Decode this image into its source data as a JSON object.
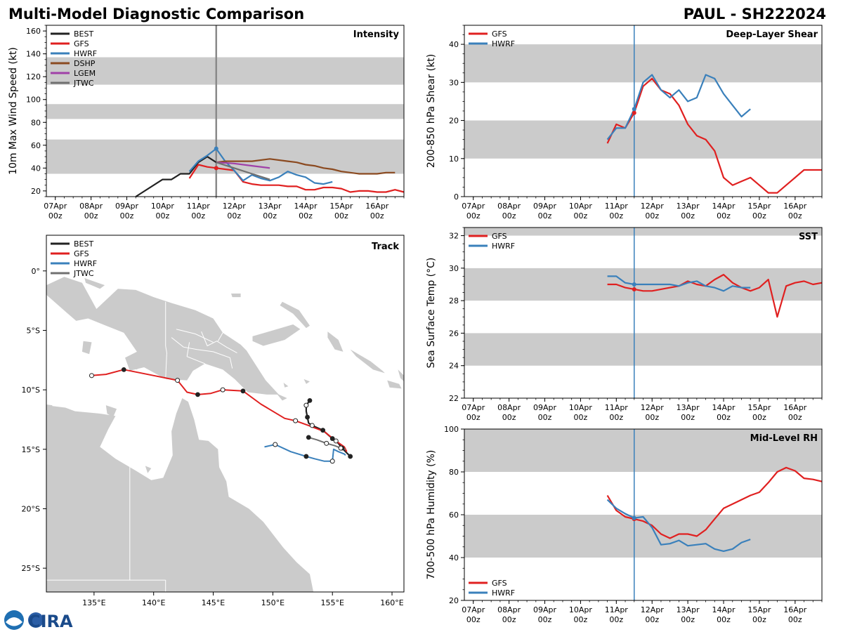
{
  "header": {
    "left_title": "Multi-Model Diagnostic Comparison",
    "right_title": "PAUL - SH222024"
  },
  "colors": {
    "BEST": "#222222",
    "GFS": "#e02020",
    "HWRF": "#3a80bb",
    "DSHP": "#8b4a20",
    "LGEM": "#a040a8",
    "JTWC": "#707070",
    "band": "#cbcbcb",
    "land": "#cbcbcb"
  },
  "time_ticks": [
    "07Apr",
    "08Apr",
    "09Apr",
    "10Apr",
    "11Apr",
    "12Apr",
    "13Apr",
    "14Apr",
    "15Apr",
    "16Apr"
  ],
  "time_sub": "00z",
  "logo_text": "CIRA",
  "chart_data": [
    {
      "id": "intensity",
      "type": "line",
      "title": "Intensity",
      "ylabel": "10m Max Wind Speed (kt)",
      "xlim": [
        6.75,
        16.75
      ],
      "ylim": [
        15,
        165
      ],
      "yticks": [
        20,
        40,
        60,
        80,
        100,
        120,
        140,
        160
      ],
      "bands": [
        [
          35,
          65
        ],
        [
          83,
          96
        ],
        [
          113,
          137
        ]
      ],
      "vline": 11.5,
      "series": [
        {
          "name": "BEST",
          "x": [
            9.25,
            10,
            10.25,
            10.5,
            10.75,
            11,
            11.25,
            11.5
          ],
          "y": [
            15,
            30,
            30,
            35,
            35,
            45,
            50,
            45
          ]
        },
        {
          "name": "GFS",
          "x": [
            10.75,
            11,
            11.25,
            11.5,
            11.75,
            12,
            12.25,
            12.5,
            12.75,
            13,
            13.25,
            13.5,
            13.75,
            14,
            14.25,
            14.5,
            14.75,
            15,
            15.25,
            15.5,
            15.75,
            16,
            16.25,
            16.5,
            16.75
          ],
          "y": [
            31,
            43,
            41,
            40,
            39,
            38,
            28,
            26,
            25,
            25,
            25,
            24,
            24,
            21,
            21,
            23,
            23,
            22,
            19,
            20,
            20,
            19,
            19,
            21,
            19
          ]
        },
        {
          "name": "HWRF",
          "x": [
            10.75,
            11,
            11.25,
            11.5,
            11.75,
            12,
            12.25,
            12.5,
            12.75,
            13,
            13.25,
            13.5,
            13.75,
            14,
            14.25,
            14.5,
            14.75
          ],
          "y": [
            37,
            46,
            51,
            57,
            46,
            38,
            29,
            34,
            31,
            29,
            32,
            37,
            34,
            32,
            27,
            26,
            28
          ]
        },
        {
          "name": "DSHP",
          "x": [
            11.5,
            11.75,
            12,
            12.5,
            13,
            13.5,
            13.75,
            14,
            14.25,
            14.5,
            14.75,
            15,
            15.25,
            15.5,
            15.75,
            16,
            16.25,
            16.5
          ],
          "y": [
            45,
            46,
            46,
            46,
            48,
            46,
            45,
            43,
            42,
            40,
            39,
            37,
            36,
            35,
            35,
            35,
            36,
            36
          ]
        },
        {
          "name": "LGEM",
          "x": [
            11.5,
            12,
            12.5,
            13
          ],
          "y": [
            45,
            44,
            42,
            40
          ]
        },
        {
          "name": "JTWC",
          "x": [
            11.5,
            12,
            12.5,
            13
          ],
          "y": [
            45,
            40,
            35,
            30
          ]
        }
      ]
    },
    {
      "id": "shear",
      "type": "line",
      "title": "Deep-Layer Shear",
      "ylabel": "200-850 hPa Shear (kt)",
      "xlim": [
        6.75,
        16.75
      ],
      "ylim": [
        0,
        45
      ],
      "yticks": [
        0,
        10,
        20,
        30,
        40
      ],
      "bands": [
        [
          10,
          20
        ],
        [
          30,
          40
        ]
      ],
      "vline": 11.5,
      "series": [
        {
          "name": "GFS",
          "x": [
            10.75,
            11,
            11.25,
            11.5,
            11.75,
            12,
            12.25,
            12.5,
            12.75,
            13,
            13.25,
            13.5,
            13.75,
            14,
            14.25,
            14.5,
            14.75,
            15,
            15.25,
            15.5,
            15.75,
            16,
            16.25,
            16.5,
            16.75
          ],
          "y": [
            14,
            19,
            18,
            22,
            29,
            31,
            28,
            27,
            24,
            19,
            16,
            15,
            12,
            5,
            3,
            4,
            5,
            3,
            1,
            1,
            3,
            5,
            7,
            7,
            7
          ]
        },
        {
          "name": "HWRF",
          "x": [
            10.75,
            11,
            11.25,
            11.5,
            11.75,
            12,
            12.25,
            12.5,
            12.75,
            13,
            13.25,
            13.5,
            13.75,
            14,
            14.25,
            14.5,
            14.75
          ],
          "y": [
            15,
            18,
            18,
            23,
            30,
            32,
            28,
            26,
            28,
            25,
            26,
            32,
            31,
            27,
            24,
            21,
            23
          ]
        }
      ]
    },
    {
      "id": "sst",
      "type": "line",
      "title": "SST",
      "ylabel": "Sea Surface Temp (°C)",
      "xlim": [
        6.75,
        16.75
      ],
      "ylim": [
        22,
        32.5
      ],
      "yticks": [
        22,
        24,
        26,
        28,
        30,
        32
      ],
      "bands": [
        [
          24,
          26
        ],
        [
          28,
          30
        ],
        [
          32,
          32.5
        ]
      ],
      "vline": 11.5,
      "series": [
        {
          "name": "GFS",
          "x": [
            10.75,
            11,
            11.25,
            11.5,
            11.75,
            12,
            12.25,
            12.5,
            12.75,
            13,
            13.25,
            13.5,
            13.75,
            14,
            14.25,
            14.5,
            14.75,
            15,
            15.25,
            15.5,
            15.75,
            16,
            16.25,
            16.5,
            16.75
          ],
          "y": [
            29,
            29,
            28.8,
            28.7,
            28.6,
            28.6,
            28.7,
            28.8,
            28.9,
            29.2,
            29,
            28.9,
            29.3,
            29.6,
            29.1,
            28.8,
            28.6,
            28.8,
            29.3,
            27,
            28.9,
            29.1,
            29.2,
            29,
            29.1
          ]
        },
        {
          "name": "HWRF",
          "x": [
            10.75,
            11,
            11.25,
            11.5,
            11.75,
            12,
            12.25,
            12.5,
            12.75,
            13,
            13.25,
            13.5,
            13.75,
            14,
            14.25,
            14.5,
            14.75
          ],
          "y": [
            29.5,
            29.5,
            29.1,
            29,
            29,
            29,
            29,
            29,
            28.9,
            29.1,
            29.2,
            28.9,
            28.8,
            28.6,
            28.9,
            28.8,
            28.8
          ]
        }
      ]
    },
    {
      "id": "rh",
      "type": "line",
      "title": "Mid-Level RH",
      "ylabel": "700-500 hPa Humidity (%)",
      "xlim": [
        6.75,
        16.75
      ],
      "ylim": [
        20,
        100
      ],
      "yticks": [
        20,
        40,
        60,
        80,
        100
      ],
      "bands": [
        [
          40,
          60
        ],
        [
          80,
          100
        ]
      ],
      "vline": 11.5,
      "series": [
        {
          "name": "GFS",
          "x": [
            10.75,
            11,
            11.25,
            11.5,
            11.75,
            12,
            12.25,
            12.5,
            12.75,
            13,
            13.25,
            13.5,
            13.75,
            14,
            14.25,
            14.5,
            14.75,
            15,
            15.25,
            15.5,
            15.75,
            16,
            16.25,
            16.5,
            16.75
          ],
          "y": [
            69,
            62,
            59,
            58,
            57,
            55,
            51,
            49,
            51,
            51,
            50,
            53,
            58,
            63,
            65,
            67,
            69,
            70.5,
            75,
            80,
            82,
            80.5,
            77,
            76.5,
            75.5
          ]
        },
        {
          "name": "HWRF",
          "x": [
            10.75,
            11,
            11.25,
            11.5,
            11.75,
            12,
            12.25,
            12.5,
            12.75,
            13,
            13.25,
            13.5,
            13.75,
            14,
            14.25,
            14.5,
            14.75
          ],
          "y": [
            67,
            63,
            60.5,
            58.5,
            59,
            54,
            46,
            46.5,
            48,
            45.5,
            46,
            46.5,
            44,
            43,
            44,
            47,
            48.5
          ]
        }
      ]
    },
    {
      "id": "track",
      "type": "scatter",
      "title": "Track",
      "xlim": [
        131,
        161
      ],
      "ylim": [
        -27,
        3
      ],
      "xticks": [
        135,
        140,
        145,
        150,
        155,
        160
      ],
      "xticklabels": [
        "135°E",
        "140°E",
        "145°E",
        "150°E",
        "155°E",
        "160°E"
      ],
      "yticks": [
        0,
        -5,
        -10,
        -15,
        -20,
        -25
      ],
      "yticklabels": [
        "0°",
        "5°S",
        "10°S",
        "15°S",
        "20°S",
        "25°S"
      ],
      "series": [
        {
          "name": "BEST",
          "lon": [
            153.1,
            152.8,
            152.8,
            152.9,
            153.0,
            153.3,
            154.2,
            155.0,
            155.5,
            155.8,
            156.1,
            156.5
          ],
          "lat": [
            -10.9,
            -11.3,
            -11.8,
            -12.3,
            -12.8,
            -13.0,
            -13.4,
            -14.1,
            -14.5,
            -14.9,
            -15.2,
            -15.6
          ]
        },
        {
          "name": "GFS",
          "lon": [
            134.8,
            136.0,
            137.5,
            140.0,
            142.0,
            142.8,
            143.7,
            144.8,
            145.8,
            147.5,
            149.0,
            151.0,
            151.9,
            153.0,
            154.3,
            155.3,
            156.0,
            156.2
          ],
          "lat": [
            -8.8,
            -8.7,
            -8.3,
            -8.8,
            -9.2,
            -10.2,
            -10.4,
            -10.3,
            -10.0,
            -10.1,
            -11.2,
            -12.4,
            -12.6,
            -13.0,
            -13.5,
            -14.3,
            -14.8,
            -15.2
          ]
        },
        {
          "name": "HWRF",
          "lon": [
            149.3,
            150.2,
            151.5,
            152.8,
            153.5,
            154.3,
            155.0,
            155.1,
            155.5,
            156.0,
            156.1
          ],
          "lat": [
            -14.8,
            -14.6,
            -15.2,
            -15.6,
            -15.8,
            -16.0,
            -16.0,
            -15.0,
            -15.2,
            -15.4,
            -15.5
          ]
        },
        {
          "name": "JTWC",
          "lon": [
            153.0,
            153.7,
            154.5,
            155.2,
            155.7,
            156.1
          ],
          "lat": [
            -14.0,
            -14.2,
            -14.5,
            -14.7,
            -14.9,
            -15.0
          ]
        }
      ],
      "markers": [
        {
          "name": "BEST",
          "filled": [
            [
              153.1,
              -10.9
            ],
            [
              152.9,
              -12.3
            ],
            [
              154.2,
              -13.4
            ],
            [
              155.0,
              -14.1
            ],
            [
              155.8,
              -14.9
            ],
            [
              156.5,
              -15.6
            ]
          ],
          "open": [
            [
              152.8,
              -11.3
            ],
            [
              153.3,
              -13.0
            ]
          ]
        },
        {
          "name": "GFS",
          "filled": [
            [
              137.5,
              -8.3
            ],
            [
              143.7,
              -10.4
            ],
            [
              147.5,
              -10.1
            ]
          ],
          "open": [
            [
              134.8,
              -8.8
            ],
            [
              142.0,
              -9.2
            ],
            [
              145.8,
              -10.0
            ],
            [
              151.9,
              -12.6
            ],
            [
              155.3,
              -14.3
            ]
          ]
        },
        {
          "name": "HWRF",
          "filled": [
            [
              152.8,
              -15.6
            ]
          ],
          "open": [
            [
              150.2,
              -14.6
            ],
            [
              155.0,
              -16.0
            ]
          ]
        },
        {
          "name": "JTWC",
          "filled": [
            [
              153.0,
              -14.0
            ]
          ],
          "open": [
            [
              154.5,
              -14.5
            ],
            [
              155.7,
              -14.9
            ]
          ]
        }
      ]
    }
  ]
}
